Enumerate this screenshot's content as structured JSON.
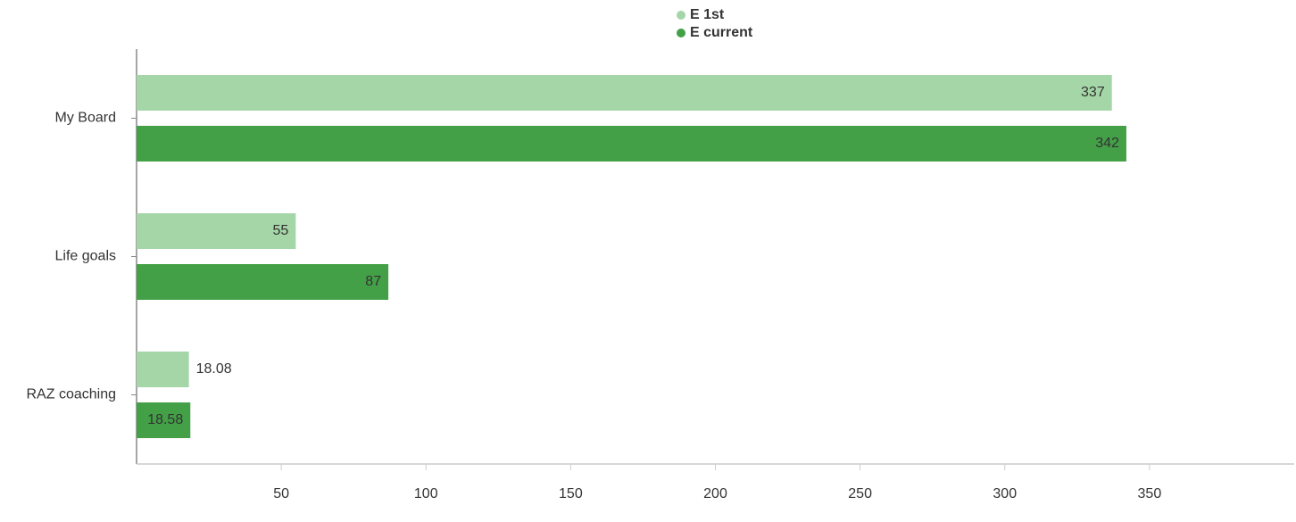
{
  "chart_data": {
    "type": "bar",
    "orientation": "horizontal",
    "categories": [
      "My Board",
      "Life goals",
      "RAZ coaching"
    ],
    "series": [
      {
        "name": "E 1st",
        "color": "#a5d6a7",
        "values": [
          337,
          55,
          18.08
        ]
      },
      {
        "name": "E current",
        "color": "#43a047",
        "values": [
          342,
          87,
          18.58
        ]
      }
    ],
    "xlim": [
      0,
      400
    ],
    "xticks": [
      50,
      100,
      150,
      200,
      250,
      300,
      350
    ],
    "legend": "top"
  }
}
